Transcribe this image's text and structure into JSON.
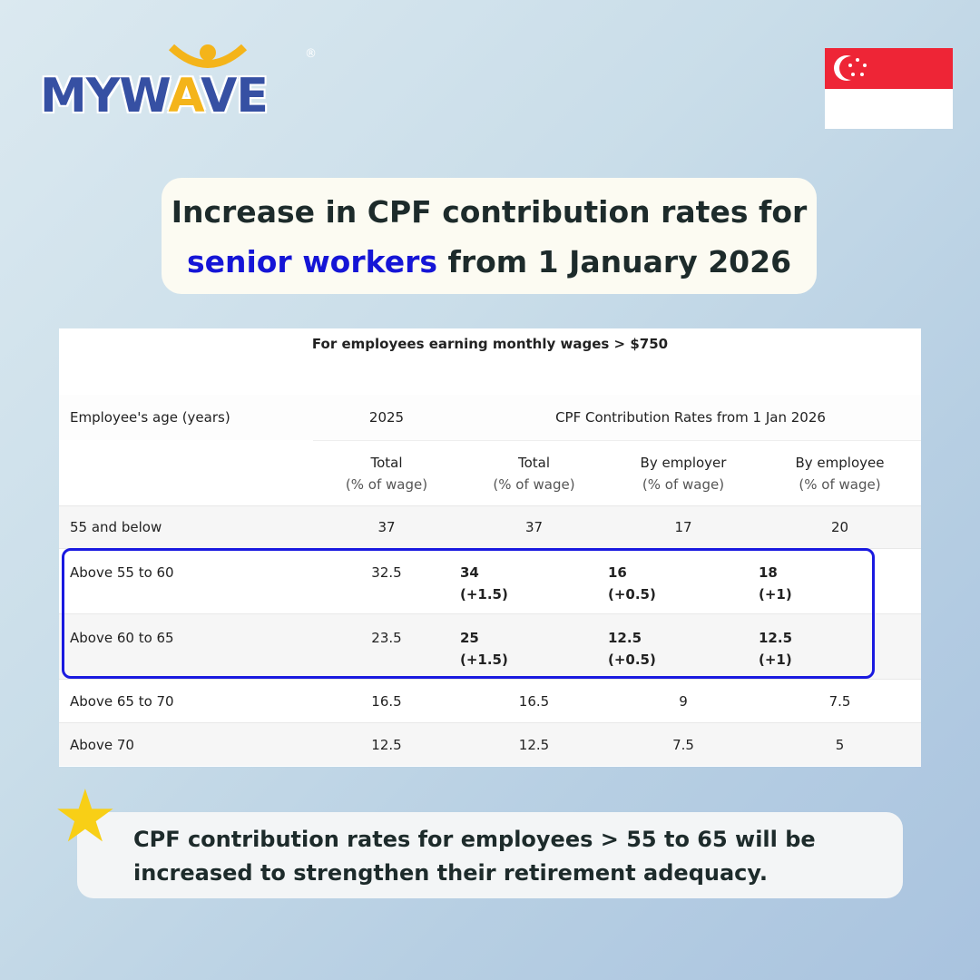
{
  "logo": {
    "before": "MYW",
    "a": "A",
    "after": "VE",
    "reg": "®"
  },
  "flag": {
    "country": "Singapore",
    "symbol": "☾⁂"
  },
  "title": {
    "line1": "Increase in CPF contribution rates for",
    "highlight": "senior workers",
    "line2_rest": " from 1 January 2026"
  },
  "table": {
    "caption": "For employees earning monthly wages > $750",
    "headers": {
      "age": "Employee's age (years)",
      "y2025": "2025",
      "y2026": "CPF Contribution Rates from 1 Jan 2026"
    },
    "subheaders": [
      {
        "l1": "Total",
        "l2": "(% of wage)"
      },
      {
        "l1": "Total",
        "l2": "(% of wage)"
      },
      {
        "l1": "By employer",
        "l2": "(% of wage)"
      },
      {
        "l1": "By employee",
        "l2": "(% of wage)"
      }
    ],
    "rows": [
      {
        "age": "55 and below",
        "t2025": "37",
        "total": "37",
        "employer": "17",
        "employee": "20"
      },
      {
        "age": "Above 55 to 60",
        "t2025": "32.5",
        "total": "34",
        "total_d": "(+1.5)",
        "employer": "16",
        "employer_d": "(+0.5)",
        "employee": "18",
        "employee_d": "(+1)"
      },
      {
        "age": "Above 60 to 65",
        "t2025": "23.5",
        "total": "25",
        "total_d": "(+1.5)",
        "employer": "12.5",
        "employer_d": "(+0.5)",
        "employee": "12.5",
        "employee_d": "(+1)"
      },
      {
        "age": "Above 65 to 70",
        "t2025": "16.5",
        "total": "16.5",
        "employer": "9",
        "employee": "7.5"
      },
      {
        "age": "Above 70",
        "t2025": "12.5",
        "total": "12.5",
        "employer": "7.5",
        "employee": "5"
      }
    ]
  },
  "note": "CPF contribution rates for employees > 55 to 65 will be increased to strengthen their retirement adequacy.",
  "colors": {
    "brand_blue": "#3650a3",
    "brand_yellow": "#f4b41a",
    "highlight": "#1515d6"
  }
}
